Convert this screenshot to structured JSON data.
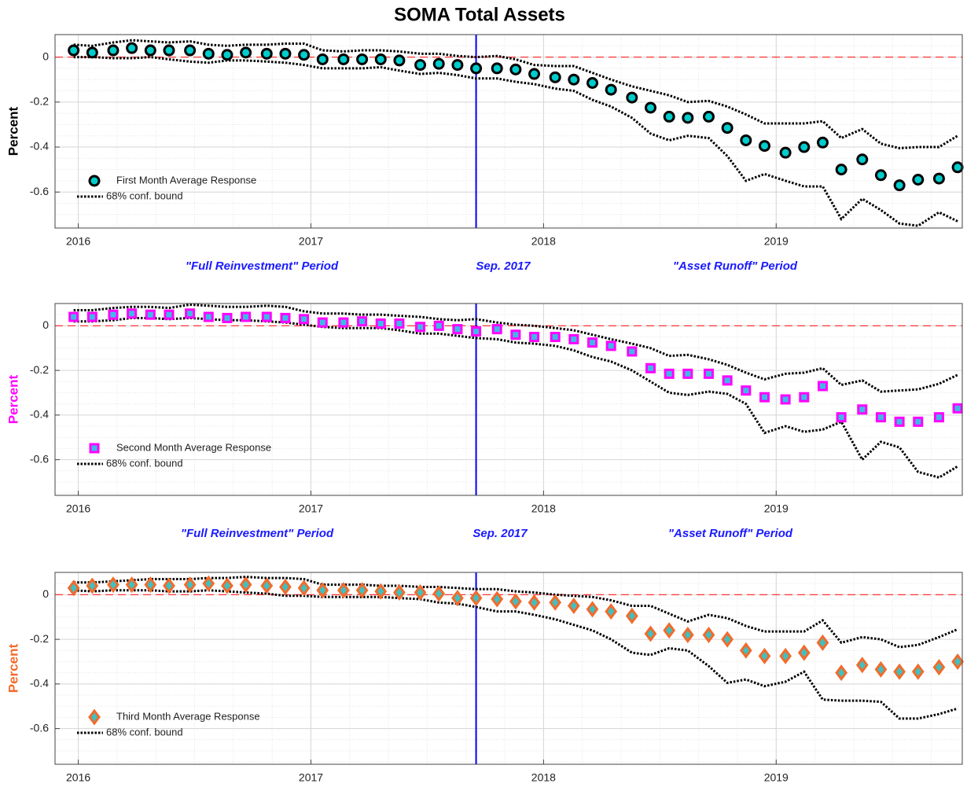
{
  "chart_data": [
    {
      "type": "line",
      "title": "SOMA Total Assets",
      "ylabel": "Percent",
      "ylabel_color": "#000000",
      "annotations": [
        "\"Full Reinvestment\" Period",
        "Sep. 2017",
        "\"Asset Runoff\" Period"
      ],
      "annotation_color": "#1a1aff",
      "xlim": [
        2015.9,
        2019.8
      ],
      "xticks": [
        2016,
        2017,
        2018,
        2019
      ],
      "ylim": [
        -0.76,
        0.1
      ],
      "yticks": [
        -0.6,
        -0.4,
        -0.2,
        0
      ],
      "grid": true,
      "legend": "lower left",
      "vline": 2017.71,
      "vline_color": "#0000ff",
      "hline": 0,
      "hline_color": "#ff3333",
      "x": [
        2015.98,
        2016.06,
        2016.15,
        2016.23,
        2016.31,
        2016.39,
        2016.48,
        2016.56,
        2016.64,
        2016.72,
        2016.81,
        2016.89,
        2016.97,
        2017.05,
        2017.14,
        2017.22,
        2017.3,
        2017.38,
        2017.47,
        2017.55,
        2017.63,
        2017.71,
        2017.8,
        2017.88,
        2017.96,
        2018.05,
        2018.13,
        2018.21,
        2018.29,
        2018.38,
        2018.46,
        2018.54,
        2018.62,
        2018.71,
        2018.79,
        2018.87,
        2018.95,
        2019.04,
        2019.12,
        2019.2,
        2019.28,
        2019.37,
        2019.45,
        2019.53,
        2019.61,
        2019.7,
        2019.78
      ],
      "series": [
        {
          "name": "First Month Average Response",
          "marker": "circle",
          "color": "#00cccc",
          "edgecolor": "#000000",
          "values": [
            0.03,
            0.02,
            0.03,
            0.04,
            0.03,
            0.03,
            0.03,
            0.015,
            0.01,
            0.02,
            0.015,
            0.015,
            0.01,
            -0.01,
            -0.01,
            -0.01,
            -0.01,
            -0.015,
            -0.035,
            -0.03,
            -0.035,
            -0.05,
            -0.05,
            -0.055,
            -0.075,
            -0.09,
            -0.1,
            -0.115,
            -0.145,
            -0.18,
            -0.225,
            -0.265,
            -0.27,
            -0.265,
            -0.315,
            -0.37,
            -0.395,
            -0.425,
            -0.4,
            -0.38,
            -0.5,
            -0.455,
            -0.525,
            -0.57,
            -0.545,
            -0.54,
            -0.49
          ]
        },
        {
          "name": "68% conf. bound",
          "marker": "none",
          "linestyle": "dotted",
          "color": "#000000",
          "values": [
            0.055,
            0.05,
            0.065,
            0.075,
            0.07,
            0.065,
            0.07,
            0.055,
            0.05,
            0.055,
            0.055,
            0.06,
            0.06,
            0.03,
            0.025,
            0.03,
            0.03,
            0.025,
            0.015,
            0.015,
            0.005,
            0,
            0.005,
            -0.01,
            -0.035,
            -0.04,
            -0.04,
            -0.07,
            -0.1,
            -0.13,
            -0.15,
            -0.17,
            -0.2,
            -0.195,
            -0.22,
            -0.255,
            -0.295,
            -0.295,
            -0.295,
            -0.285,
            -0.36,
            -0.32,
            -0.385,
            -0.405,
            -0.4,
            -0.4,
            -0.35
          ]
        },
        {
          "marker": "none",
          "linestyle": "dotted",
          "color": "#000000",
          "values": [
            0,
            0,
            -0.005,
            -0.005,
            0,
            -0.01,
            -0.02,
            -0.025,
            -0.015,
            -0.015,
            -0.02,
            -0.025,
            -0.035,
            -0.05,
            -0.05,
            -0.05,
            -0.045,
            -0.06,
            -0.075,
            -0.07,
            -0.08,
            -0.095,
            -0.095,
            -0.11,
            -0.12,
            -0.14,
            -0.15,
            -0.19,
            -0.22,
            -0.27,
            -0.34,
            -0.37,
            -0.35,
            -0.36,
            -0.44,
            -0.55,
            -0.52,
            -0.55,
            -0.575,
            -0.575,
            -0.72,
            -0.63,
            -0.68,
            -0.74,
            -0.75,
            -0.69,
            -0.73
          ]
        }
      ]
    },
    {
      "type": "line",
      "ylabel": "Percent",
      "ylabel_color": "#ff00ff",
      "annotations": [
        "\"Full Reinvestment\" Period",
        "Sep. 2017",
        "\"Asset Runoff\" Period"
      ],
      "annotation_color": "#1a1aff",
      "xlim": [
        2015.9,
        2019.8
      ],
      "xticks": [
        2016,
        2017,
        2018,
        2019
      ],
      "ylim": [
        -0.76,
        0.1
      ],
      "yticks": [
        -0.6,
        -0.4,
        -0.2,
        0
      ],
      "grid": true,
      "legend": "lower left",
      "vline": 2017.71,
      "vline_color": "#0000ff",
      "hline": 0,
      "hline_color": "#ff3333",
      "x": [
        2015.98,
        2016.06,
        2016.15,
        2016.23,
        2016.31,
        2016.39,
        2016.48,
        2016.56,
        2016.64,
        2016.72,
        2016.81,
        2016.89,
        2016.97,
        2017.05,
        2017.14,
        2017.22,
        2017.3,
        2017.38,
        2017.47,
        2017.55,
        2017.63,
        2017.71,
        2017.8,
        2017.88,
        2017.96,
        2018.05,
        2018.13,
        2018.21,
        2018.29,
        2018.38,
        2018.46,
        2018.54,
        2018.62,
        2018.71,
        2018.79,
        2018.87,
        2018.95,
        2019.04,
        2019.12,
        2019.2,
        2019.28,
        2019.37,
        2019.45,
        2019.53,
        2019.61,
        2019.7,
        2019.78
      ],
      "series": [
        {
          "name": "Second Month Average Response",
          "marker": "square",
          "color": "#3fb8e8",
          "edgecolor": "#ff00ff",
          "values": [
            0.04,
            0.04,
            0.05,
            0.055,
            0.05,
            0.05,
            0.055,
            0.04,
            0.035,
            0.04,
            0.04,
            0.035,
            0.03,
            0.015,
            0.015,
            0.02,
            0.01,
            0.01,
            -0.005,
            0,
            -0.015,
            -0.025,
            -0.015,
            -0.04,
            -0.05,
            -0.05,
            -0.06,
            -0.075,
            -0.09,
            -0.115,
            -0.19,
            -0.215,
            -0.215,
            -0.215,
            -0.245,
            -0.29,
            -0.32,
            -0.33,
            -0.32,
            -0.27,
            -0.41,
            -0.375,
            -0.41,
            -0.43,
            -0.43,
            -0.41,
            -0.37
          ]
        },
        {
          "name": "68% conf. bound",
          "marker": "none",
          "linestyle": "dotted",
          "color": "#000000",
          "values": [
            0.07,
            0.07,
            0.08,
            0.085,
            0.085,
            0.08,
            0.095,
            0.09,
            0.085,
            0.085,
            0.09,
            0.085,
            0.065,
            0.055,
            0.055,
            0.05,
            0.05,
            0.045,
            0.04,
            0.03,
            0.025,
            0.03,
            0.015,
            0.005,
            0,
            -0.01,
            -0.02,
            -0.04,
            -0.06,
            -0.08,
            -0.1,
            -0.135,
            -0.13,
            -0.15,
            -0.175,
            -0.21,
            -0.24,
            -0.215,
            -0.21,
            -0.19,
            -0.265,
            -0.245,
            -0.295,
            -0.29,
            -0.285,
            -0.26,
            -0.22
          ]
        },
        {
          "marker": "none",
          "linestyle": "dotted",
          "color": "#000000",
          "values": [
            0.02,
            0.02,
            0.025,
            0.035,
            0.035,
            0.03,
            0.035,
            0.03,
            0.025,
            0.025,
            0.02,
            0.015,
            0.005,
            -0.005,
            -0.01,
            -0.01,
            -0.01,
            -0.02,
            -0.035,
            -0.035,
            -0.045,
            -0.055,
            -0.06,
            -0.075,
            -0.08,
            -0.09,
            -0.11,
            -0.14,
            -0.16,
            -0.2,
            -0.25,
            -0.3,
            -0.31,
            -0.295,
            -0.305,
            -0.35,
            -0.48,
            -0.45,
            -0.475,
            -0.465,
            -0.43,
            -0.6,
            -0.52,
            -0.545,
            -0.655,
            -0.68,
            -0.63
          ]
        }
      ]
    },
    {
      "type": "line",
      "ylabel": "Percent",
      "ylabel_color": "#f26b2c",
      "xlim": [
        2015.9,
        2019.8
      ],
      "xticks": [
        2016,
        2017,
        2018,
        2019
      ],
      "ylim": [
        -0.76,
        0.1
      ],
      "yticks": [
        -0.6,
        -0.4,
        -0.2,
        0
      ],
      "grid": true,
      "legend": "lower left",
      "vline": 2017.71,
      "vline_color": "#0000ff",
      "hline": 0,
      "hline_color": "#ff3333",
      "x": [
        2015.98,
        2016.06,
        2016.15,
        2016.23,
        2016.31,
        2016.39,
        2016.48,
        2016.56,
        2016.64,
        2016.72,
        2016.81,
        2016.89,
        2016.97,
        2017.05,
        2017.14,
        2017.22,
        2017.3,
        2017.38,
        2017.47,
        2017.55,
        2017.63,
        2017.71,
        2017.8,
        2017.88,
        2017.96,
        2018.05,
        2018.13,
        2018.21,
        2018.29,
        2018.38,
        2018.46,
        2018.54,
        2018.62,
        2018.71,
        2018.79,
        2018.87,
        2018.95,
        2019.04,
        2019.12,
        2019.2,
        2019.28,
        2019.37,
        2019.45,
        2019.53,
        2019.61,
        2019.7,
        2019.78
      ],
      "series": [
        {
          "name": "Third Month Average Response",
          "marker": "diamond",
          "color": "#40c0c0",
          "edgecolor": "#f26b2c",
          "values": [
            0.03,
            0.04,
            0.045,
            0.045,
            0.045,
            0.04,
            0.045,
            0.05,
            0.04,
            0.045,
            0.04,
            0.035,
            0.03,
            0.02,
            0.02,
            0.02,
            0.015,
            0.01,
            0.01,
            0.005,
            -0.015,
            -0.015,
            -0.02,
            -0.03,
            -0.035,
            -0.035,
            -0.05,
            -0.065,
            -0.075,
            -0.095,
            -0.175,
            -0.16,
            -0.18,
            -0.18,
            -0.2,
            -0.25,
            -0.275,
            -0.275,
            -0.26,
            -0.215,
            -0.35,
            -0.315,
            -0.335,
            -0.345,
            -0.345,
            -0.325,
            -0.3
          ]
        },
        {
          "name": "68% conf. bound",
          "marker": "none",
          "linestyle": "dotted",
          "color": "#000000",
          "values": [
            0.055,
            0.055,
            0.06,
            0.065,
            0.07,
            0.07,
            0.07,
            0.075,
            0.075,
            0.08,
            0.075,
            0.075,
            0.07,
            0.045,
            0.045,
            0.045,
            0.04,
            0.04,
            0.035,
            0.035,
            0.03,
            0.025,
            0.025,
            0.015,
            0.01,
            0,
            -0.005,
            -0.01,
            -0.025,
            -0.05,
            -0.05,
            -0.085,
            -0.12,
            -0.09,
            -0.105,
            -0.14,
            -0.165,
            -0.165,
            -0.165,
            -0.115,
            -0.215,
            -0.19,
            -0.2,
            -0.235,
            -0.225,
            -0.19,
            -0.155
          ]
        },
        {
          "marker": "none",
          "linestyle": "dotted",
          "color": "#000000",
          "values": [
            0.02,
            0.015,
            0.02,
            0.02,
            0.02,
            0.015,
            0.015,
            0.02,
            0.015,
            0.01,
            0.005,
            -0.005,
            -0.005,
            -0.01,
            -0.01,
            -0.01,
            -0.01,
            -0.015,
            -0.02,
            -0.035,
            -0.04,
            -0.055,
            -0.075,
            -0.075,
            -0.09,
            -0.11,
            -0.135,
            -0.16,
            -0.2,
            -0.26,
            -0.27,
            -0.24,
            -0.25,
            -0.32,
            -0.395,
            -0.38,
            -0.41,
            -0.39,
            -0.345,
            -0.47,
            -0.475,
            -0.475,
            -0.48,
            -0.555,
            -0.555,
            -0.535,
            -0.51
          ]
        }
      ]
    }
  ]
}
